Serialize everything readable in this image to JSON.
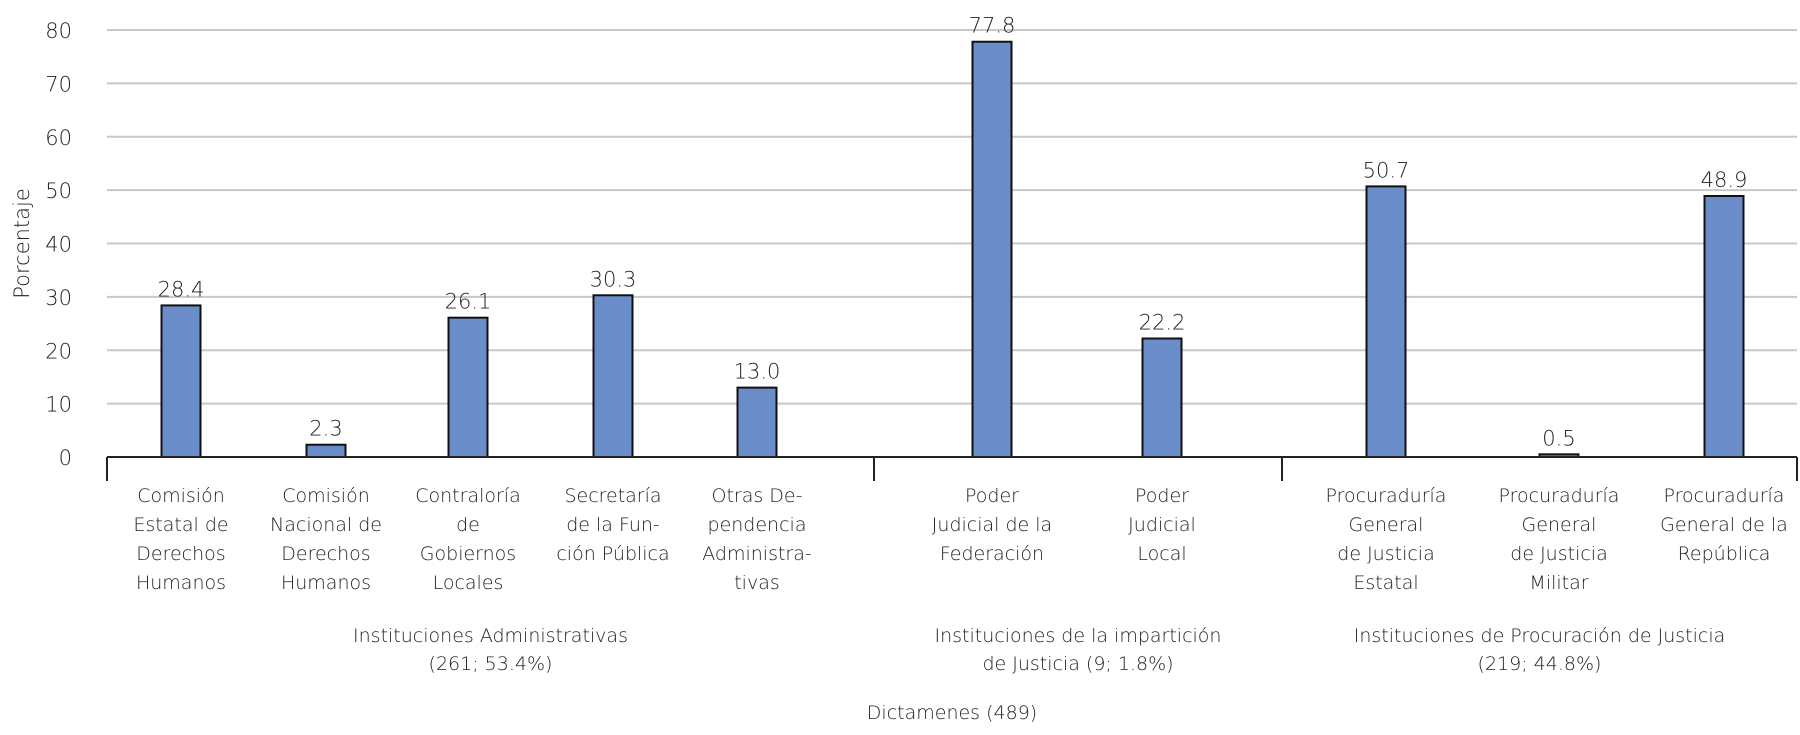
{
  "chart_data": {
    "type": "bar",
    "ylabel": "Porcentaje",
    "xlabel": "Dictamenes (489)",
    "ylim": [
      0,
      80
    ],
    "yticks": [
      0,
      10,
      20,
      30,
      40,
      50,
      60,
      70,
      80
    ],
    "grid": true,
    "bar_color": "#6a8cc8",
    "groups": [
      {
        "label": [
          "Instituciones Administrativas",
          "(261; 53.4%)"
        ],
        "categories": [
          {
            "label": [
              "Comisión",
              "Estatal de",
              "Derechos",
              "Humanos"
            ],
            "value": 28.4,
            "value_label": "28.4"
          },
          {
            "label": [
              "Comisión",
              "Nacional de",
              "Derechos",
              "Humanos"
            ],
            "value": 2.3,
            "value_label": "2.3"
          },
          {
            "label": [
              "Contraloría",
              "de",
              "Gobiernos",
              "Locales"
            ],
            "value": 26.1,
            "value_label": "26.1"
          },
          {
            "label": [
              "Secretaría",
              "de la Fun-",
              "ción Pública"
            ],
            "value": 30.3,
            "value_label": "30.3"
          },
          {
            "label": [
              "Otras De-",
              "pendencia",
              "Administra-",
              "tivas"
            ],
            "value": 13.0,
            "value_label": "13.0"
          }
        ]
      },
      {
        "label": [
          "Instituciones de la impartición",
          "de Justicia (9; 1.8%)"
        ],
        "categories": [
          {
            "label": [
              "Poder",
              "Judicial de la",
              "Federación"
            ],
            "value": 77.8,
            "value_label": "77.8"
          },
          {
            "label": [
              "Poder",
              "Judicial",
              "Local"
            ],
            "value": 22.2,
            "value_label": "22.2"
          }
        ]
      },
      {
        "label": [
          "Instituciones de Procuración de Justicia",
          "(219; 44.8%)"
        ],
        "categories": [
          {
            "label": [
              "Procuraduría",
              "General",
              "de Justicia",
              "Estatal"
            ],
            "value": 50.7,
            "value_label": "50.7"
          },
          {
            "label": [
              "Procuraduría",
              "General",
              "de Justicia",
              "Militar"
            ],
            "value": 0.5,
            "value_label": "0.5"
          },
          {
            "label": [
              "Procuraduría",
              "General de la",
              "República"
            ],
            "value": 48.9,
            "value_label": "48.9"
          }
        ]
      }
    ]
  }
}
